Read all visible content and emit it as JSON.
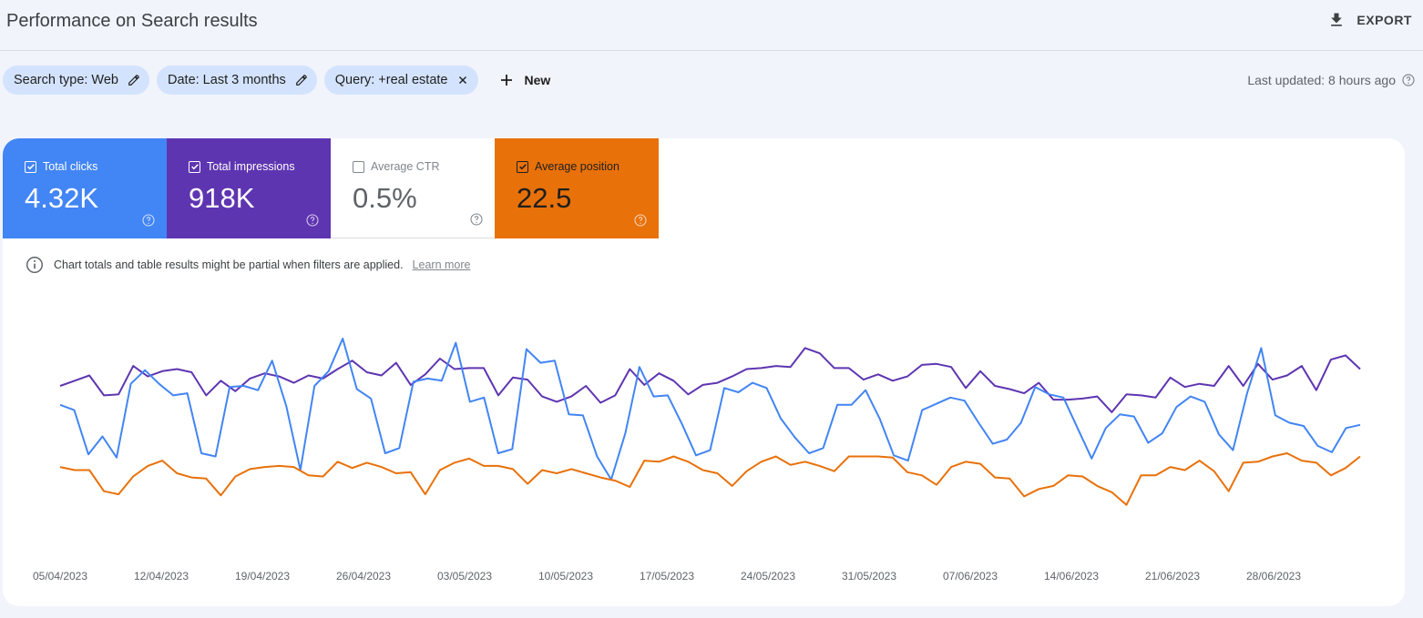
{
  "header": {
    "title": "Performance on Search results",
    "export_label": "EXPORT"
  },
  "filters": {
    "chips": [
      {
        "label": "Search type: Web",
        "icon": "pencil-icon"
      },
      {
        "label": "Date: Last 3 months",
        "icon": "pencil-icon"
      },
      {
        "label": "Query: +real estate",
        "icon": "close-icon"
      }
    ],
    "new_label": "New",
    "last_updated": "Last updated: 8 hours ago"
  },
  "metrics": {
    "clicks": {
      "label": "Total clicks",
      "value": "4.32K",
      "checked": true,
      "color": "#4285f4"
    },
    "impressions": {
      "label": "Total impressions",
      "value": "918K",
      "checked": true,
      "color": "#5e35b1"
    },
    "ctr": {
      "label": "Average CTR",
      "value": "0.5%",
      "checked": false,
      "color": "#ffffff"
    },
    "position": {
      "label": "Average position",
      "value": "22.5",
      "checked": true,
      "color": "#e8710a"
    }
  },
  "notice": {
    "text": "Chart totals and table results might be partial when filters are applied.",
    "link": "Learn more"
  },
  "chart_data": {
    "type": "line",
    "x_tick_labels": [
      "05/04/2023",
      "12/04/2023",
      "19/04/2023",
      "26/04/2023",
      "03/05/2023",
      "10/05/2023",
      "17/05/2023",
      "24/05/2023",
      "31/05/2023",
      "07/06/2023",
      "14/06/2023",
      "21/06/2023",
      "28/06/2023"
    ],
    "grid": false,
    "legend": "none",
    "series": [
      {
        "name": "Total impressions",
        "color": "#5e35b1",
        "relative_values": [
          0.55,
          0.6,
          0.65,
          0.46,
          0.47,
          0.74,
          0.64,
          0.69,
          0.71,
          0.68,
          0.46,
          0.6,
          0.5,
          0.62,
          0.67,
          0.64,
          0.58,
          0.65,
          0.62,
          0.71,
          0.79,
          0.68,
          0.65,
          0.77,
          0.56,
          0.66,
          0.81,
          0.71,
          0.72,
          0.72,
          0.46,
          0.63,
          0.61,
          0.45,
          0.4,
          0.45,
          0.55,
          0.39,
          0.46,
          0.71,
          0.56,
          0.67,
          0.6,
          0.47,
          0.56,
          0.58,
          0.64,
          0.71,
          0.72,
          0.74,
          0.73,
          0.91,
          0.86,
          0.72,
          0.72,
          0.61,
          0.66,
          0.6,
          0.64,
          0.75,
          0.76,
          0.73,
          0.53,
          0.69,
          0.55,
          0.52,
          0.48,
          0.58,
          0.42,
          0.42,
          0.43,
          0.45,
          0.3,
          0.47,
          0.46,
          0.44,
          0.63,
          0.54,
          0.57,
          0.55,
          0.74,
          0.55,
          0.76,
          0.61,
          0.65,
          0.74,
          0.51,
          0.8,
          0.84,
          0.71
        ]
      },
      {
        "name": "Total clicks",
        "color": "#4285f4",
        "relative_values": [
          0.37,
          0.32,
          -0.1,
          0.07,
          -0.13,
          0.57,
          0.7,
          0.57,
          0.46,
          0.48,
          -0.09,
          -0.12,
          0.54,
          0.55,
          0.51,
          0.79,
          0.36,
          -0.25,
          0.55,
          0.69,
          1.0,
          0.52,
          0.43,
          -0.09,
          -0.04,
          0.59,
          0.62,
          0.6,
          0.96,
          0.4,
          0.44,
          -0.09,
          -0.05,
          0.9,
          0.77,
          0.79,
          0.28,
          0.27,
          -0.12,
          -0.34,
          0.1,
          0.73,
          0.45,
          0.46,
          0.19,
          -0.11,
          -0.06,
          0.53,
          0.49,
          0.58,
          0.53,
          0.24,
          0.06,
          -0.09,
          -0.04,
          0.37,
          0.37,
          0.51,
          0.24,
          -0.11,
          -0.16,
          0.32,
          0.38,
          0.44,
          0.41,
          0.2,
          0.0,
          0.04,
          0.2,
          0.54,
          0.47,
          0.44,
          0.15,
          -0.14,
          0.15,
          0.28,
          0.26,
          0.01,
          0.1,
          0.35,
          0.45,
          0.4,
          0.09,
          -0.06,
          0.48,
          0.91,
          0.27,
          0.2,
          0.17,
          -0.02,
          -0.08,
          0.15,
          0.18
        ]
      },
      {
        "name": "Average position",
        "color": "#e8710a",
        "relative_values": [
          -0.22,
          -0.25,
          -0.25,
          -0.45,
          -0.48,
          -0.31,
          -0.21,
          -0.16,
          -0.28,
          -0.32,
          -0.33,
          -0.49,
          -0.31,
          -0.24,
          -0.22,
          -0.21,
          -0.22,
          -0.3,
          -0.31,
          -0.17,
          -0.23,
          -0.18,
          -0.22,
          -0.28,
          -0.27,
          -0.48,
          -0.25,
          -0.18,
          -0.14,
          -0.21,
          -0.21,
          -0.24,
          -0.38,
          -0.25,
          -0.28,
          -0.24,
          -0.28,
          -0.32,
          -0.35,
          -0.41,
          -0.16,
          -0.17,
          -0.12,
          -0.17,
          -0.25,
          -0.28,
          -0.4,
          -0.26,
          -0.17,
          -0.12,
          -0.2,
          -0.17,
          -0.21,
          -0.26,
          -0.12,
          -0.12,
          -0.12,
          -0.13,
          -0.27,
          -0.3,
          -0.39,
          -0.22,
          -0.17,
          -0.19,
          -0.32,
          -0.33,
          -0.5,
          -0.43,
          -0.4,
          -0.3,
          -0.31,
          -0.4,
          -0.46,
          -0.58,
          -0.3,
          -0.3,
          -0.22,
          -0.25,
          -0.16,
          -0.26,
          -0.45,
          -0.18,
          -0.17,
          -0.12,
          -0.09,
          -0.16,
          -0.18,
          -0.3,
          -0.23,
          -0.12
        ]
      }
    ]
  }
}
